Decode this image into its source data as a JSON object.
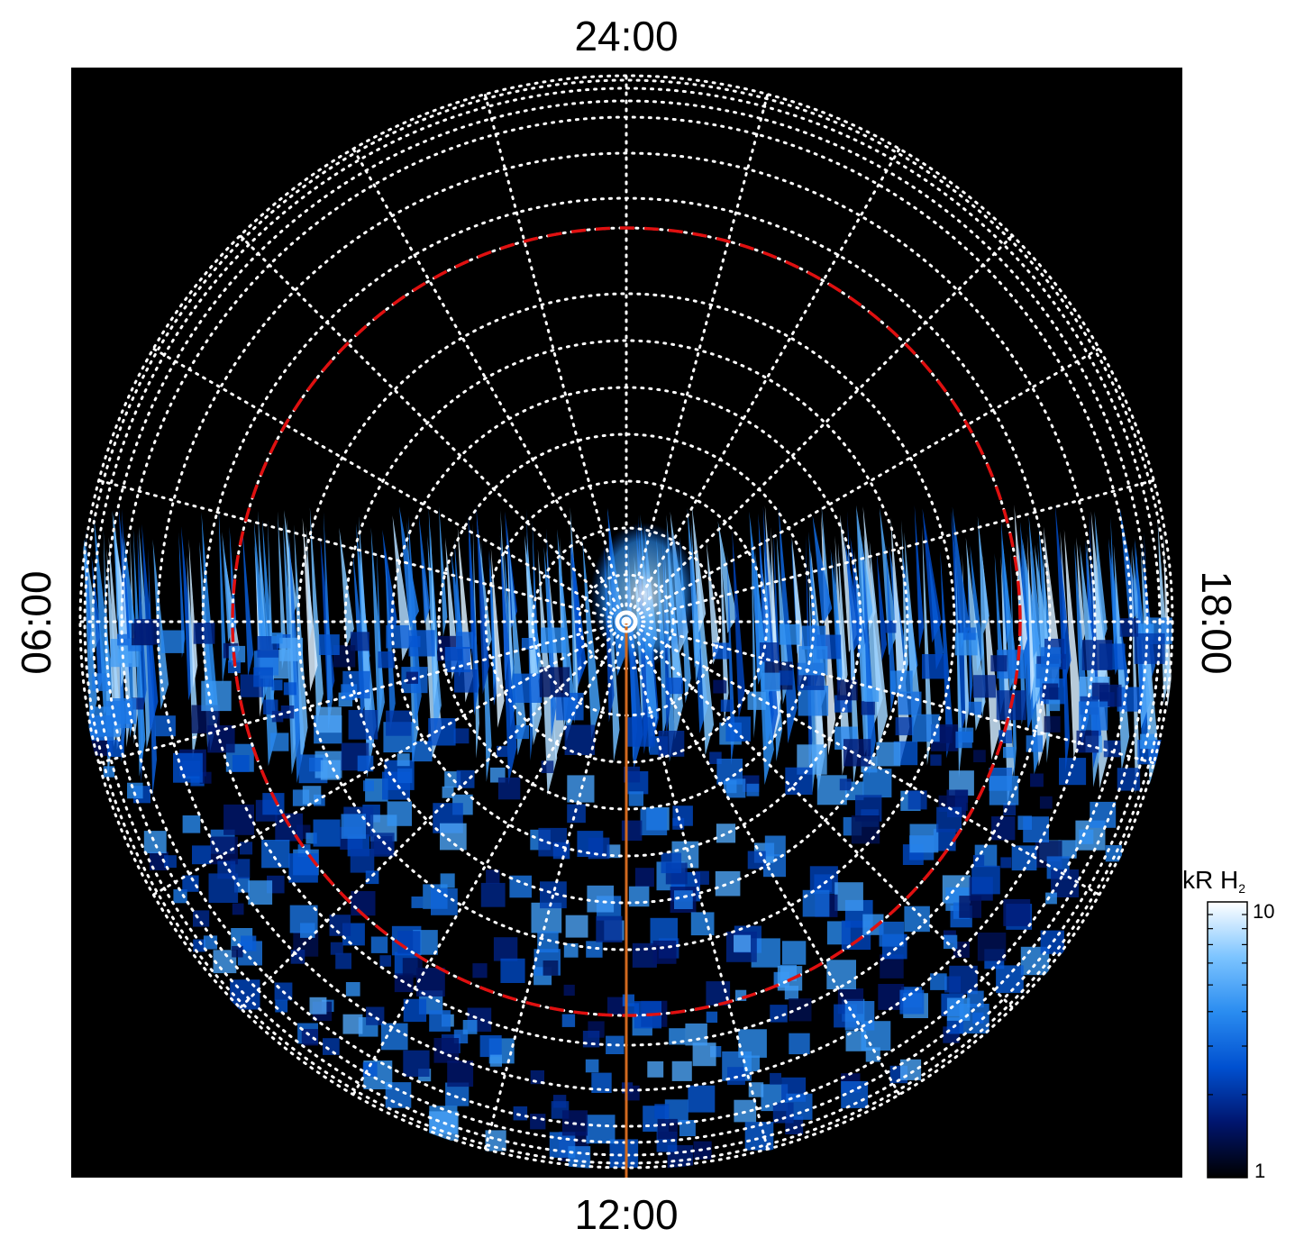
{
  "chart_data": {
    "type": "heatmap",
    "projection": "polar",
    "title": "",
    "local_time_labels": {
      "top": "24:00",
      "bottom": "12:00",
      "left": "06:00",
      "right": "18:00"
    },
    "meridians_hours": [
      0,
      1,
      2,
      3,
      4,
      5,
      6,
      7,
      8,
      9,
      10,
      11,
      12,
      13,
      14,
      15,
      16,
      17,
      18,
      19,
      20,
      21,
      22,
      23
    ],
    "colorbar": {
      "label_main": "kR H",
      "label_sub": "2",
      "scale": "log",
      "min": 1,
      "max": 10,
      "tick_labels": [
        "10",
        "1"
      ],
      "colors": [
        "#000000",
        "#00156e",
        "#0050d0",
        "#2a8cf0",
        "#7cc4ff",
        "#ffffff"
      ]
    },
    "colors": {
      "background": "#000000",
      "grid": "#ffffff",
      "reference_circle": "#e01010",
      "noon_meridian_line": "#d2691e"
    },
    "grid": true,
    "data_coverage": "dayside hemisphere (06:00 through 12:00 to 18:00)",
    "emission_peak_kR": 10
  }
}
